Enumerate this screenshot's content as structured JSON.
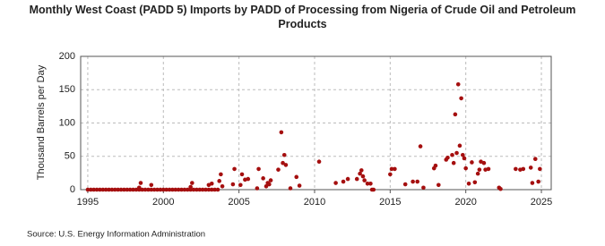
{
  "chart_data": {
    "type": "scatter",
    "title": "Monthly West Coast (PADD 5) Imports by PADD of Processing from Nigeria of Crude Oil and Petroleum Products",
    "y_label": "Thousand Barrels per Day",
    "source": "Source: U.S. Energy Information Administration",
    "xlim": [
      1994.53,
      2025.65
    ],
    "ylim": [
      0,
      200
    ],
    "xticks": [
      1995,
      2000,
      2005,
      2010,
      2015,
      2020,
      2025
    ],
    "yticks": [
      0,
      50,
      100,
      150,
      200
    ],
    "grid": true,
    "x": [
      1995.0,
      1995.2,
      1995.4,
      1995.6,
      1995.8,
      1996.0,
      1996.2,
      1996.4,
      1996.6,
      1996.8,
      1997.0,
      1997.2,
      1997.4,
      1997.6,
      1997.8,
      1998.0,
      1998.2,
      1998.4,
      1998.6,
      1998.8,
      1999.0,
      1999.2,
      1999.4,
      1999.6,
      1999.8,
      2000.0,
      2000.2,
      2000.4,
      2000.6,
      2000.8,
      2001.0,
      2001.2,
      2001.4,
      2001.6,
      2001.8,
      2002.0,
      2002.2,
      2002.4,
      2002.6,
      2002.8,
      2003.0,
      2003.2,
      2003.4,
      2003.6,
      1998.4,
      1998.5,
      1999.2,
      2001.8,
      2001.9,
      2003.0,
      2003.2,
      2003.7,
      2003.8,
      2003.9,
      2004.6,
      2004.7,
      2005.1,
      2005.2,
      2005.4,
      2005.6,
      2006.2,
      2006.3,
      2006.6,
      2006.8,
      2006.9,
      2007.0,
      2007.1,
      2007.6,
      2007.8,
      2007.9,
      2008.0,
      2008.1,
      2008.4,
      2008.8,
      2009.0,
      2010.3,
      2011.4,
      2011.9,
      2012.2,
      2012.8,
      2013.0,
      2013.1,
      2013.2,
      2013.3,
      2013.5,
      2013.7,
      2013.8,
      2013.9,
      2015.0,
      2015.1,
      2015.3,
      2016.0,
      2016.5,
      2016.8,
      2017.0,
      2017.2,
      2017.9,
      2018.0,
      2018.2,
      2018.7,
      2018.8,
      2019.1,
      2019.2,
      2019.3,
      2019.4,
      2019.5,
      2019.6,
      2019.7,
      2019.8,
      2019.9,
      2020.0,
      2020.2,
      2020.4,
      2020.6,
      2020.8,
      2020.9,
      2021.0,
      2021.2,
      2021.3,
      2021.5,
      2022.2,
      2022.3,
      2023.3,
      2023.6,
      2023.8,
      2024.3,
      2024.4,
      2024.6,
      2024.8,
      2024.9
    ],
    "series": [
      {
        "color": "#a50f0f",
        "values": [
          0,
          0,
          0,
          0,
          0,
          0,
          0,
          0,
          0,
          0,
          0,
          0,
          0,
          0,
          0,
          0,
          0,
          0,
          0,
          0,
          0,
          0,
          0,
          0,
          0,
          0,
          0,
          0,
          0,
          0,
          0,
          0,
          0,
          0,
          0,
          0,
          0,
          0,
          0,
          0,
          0,
          0,
          0,
          0,
          3,
          10,
          7,
          4,
          10,
          7,
          9,
          13,
          23,
          5,
          8,
          31,
          7,
          23,
          15,
          16,
          2,
          31,
          17,
          5,
          10,
          8,
          14,
          30,
          86,
          40,
          52,
          37,
          2,
          19,
          6,
          42,
          10,
          12,
          16,
          16,
          24,
          29,
          20,
          14,
          9,
          9,
          0,
          0,
          23,
          31,
          31,
          8,
          12,
          12,
          65,
          3,
          32,
          36,
          7,
          45,
          48,
          52,
          40,
          113,
          55,
          158,
          66,
          137,
          52,
          47,
          32,
          9,
          41,
          11,
          24,
          30,
          42,
          40,
          30,
          31,
          3,
          1,
          31,
          30,
          31,
          33,
          10,
          46,
          12,
          31
        ]
      }
    ]
  }
}
